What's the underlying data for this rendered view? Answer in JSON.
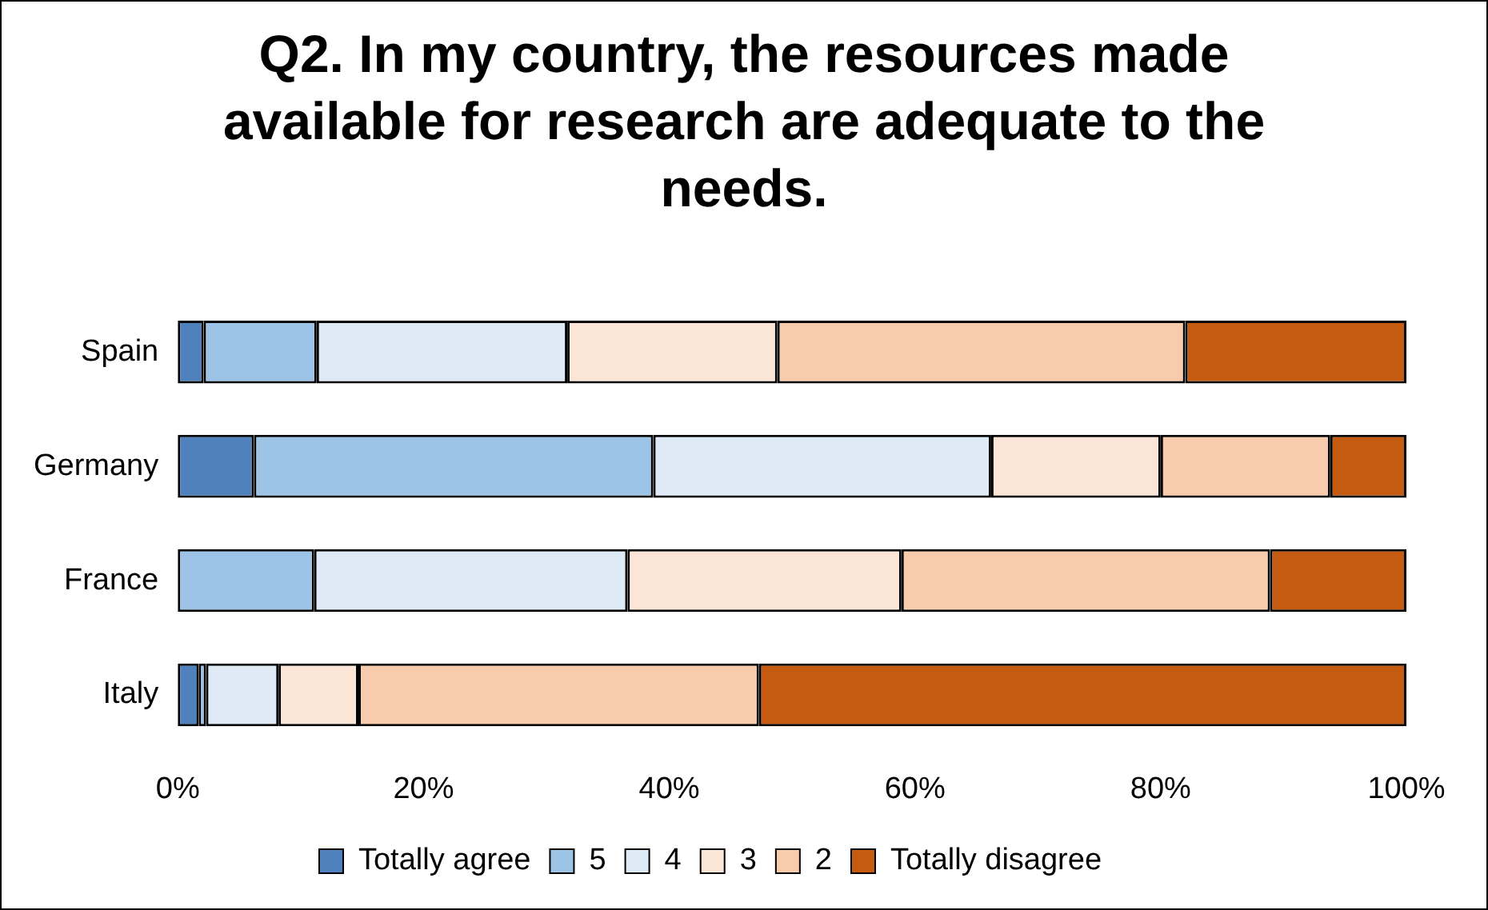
{
  "chart_data": {
    "type": "bar",
    "orientation": "horizontal",
    "stacked": true,
    "title": "Q2. In my country, the resources made available for research are adequate to the needs.",
    "categories": [
      "Spain",
      "Germany",
      "France",
      "Italy"
    ],
    "series": [
      {
        "name": "Totally agree",
        "color": "#4f81bd",
        "values": [
          2.1,
          6.2,
          0,
          1.7
        ]
      },
      {
        "name": "5",
        "color": "#9dc3e6",
        "values": [
          9.2,
          32.5,
          11.1,
          0.6
        ]
      },
      {
        "name": "4",
        "color": "#deebf7",
        "values": [
          20.4,
          27.5,
          25.5,
          5.9
        ]
      },
      {
        "name": "3",
        "color": "#fbe5d6",
        "values": [
          17.1,
          13.8,
          22.3,
          6.5
        ]
      },
      {
        "name": "2",
        "color": "#f8cbad",
        "values": [
          33.2,
          13.8,
          30.0,
          32.6
        ]
      },
      {
        "name": "Totally disagree",
        "color": "#c55a11",
        "values": [
          18.0,
          6.2,
          11.1,
          52.7
        ]
      }
    ],
    "xlim": [
      0,
      100
    ],
    "xticks": [
      {
        "value": 0,
        "label": "0%"
      },
      {
        "value": 20,
        "label": "20%"
      },
      {
        "value": 40,
        "label": "40%"
      },
      {
        "value": 60,
        "label": "60%"
      },
      {
        "value": 80,
        "label": "80%"
      },
      {
        "value": 100,
        "label": "100%"
      }
    ],
    "grid": false,
    "legend": "bottom"
  }
}
